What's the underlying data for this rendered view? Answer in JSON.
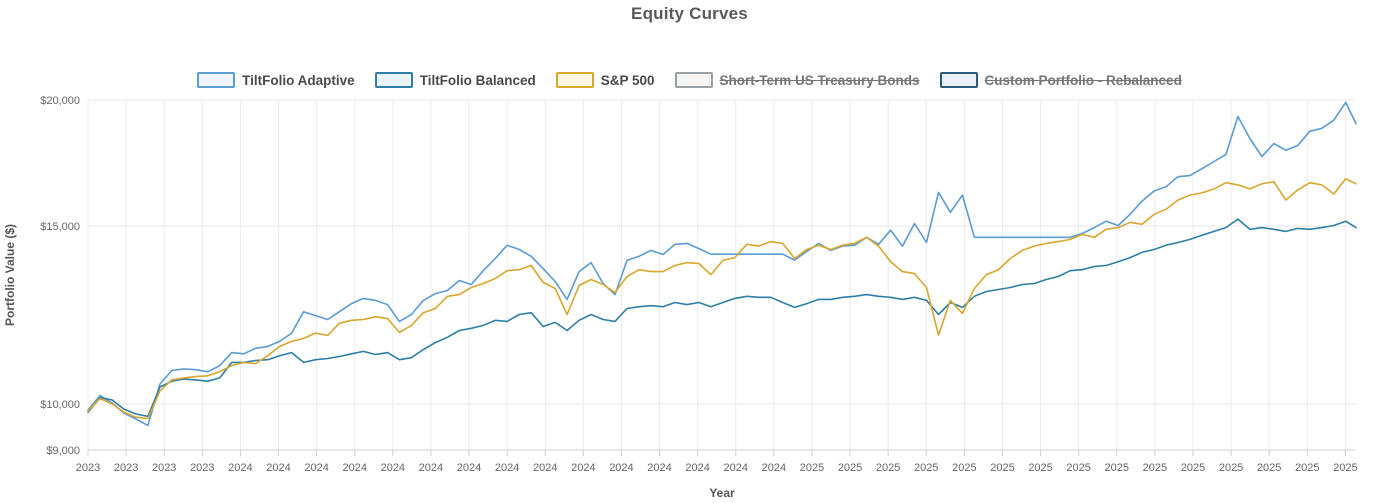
{
  "title": "Equity Curves",
  "legend": {
    "items": [
      {
        "label": "TiltFolio Adaptive",
        "color": "#5b9bd5",
        "fill": "#edf4fb",
        "active": true
      },
      {
        "label": "TiltFolio Balanced",
        "color": "#2f7ea6",
        "fill": "#e9f2f7",
        "active": true
      },
      {
        "label": "S&P 500",
        "color": "#d9a62e",
        "fill": "#fcf7e3",
        "active": true
      },
      {
        "label": "Short-Term US Treasury Bonds",
        "color": "#9aa0a5",
        "fill": "#f5f5f5",
        "active": false
      },
      {
        "label": "Custom Portfolio - Rebalanced",
        "color": "#2b5a7c",
        "fill": "#e9eff5",
        "active": false
      }
    ]
  },
  "chart_data": {
    "type": "line",
    "title": "Equity Curves",
    "xlabel": "Year",
    "ylabel": "Portfolio Value ($)",
    "y_scale": "log",
    "ylim": [
      9000,
      20000
    ],
    "xlim": [
      2023.767,
      2025.99
    ],
    "grid": true,
    "legend_position": "top",
    "y_ticks": [
      {
        "value": 9000,
        "label": "$9,000"
      },
      {
        "value": 10000,
        "label": "$10,000"
      },
      {
        "value": 15000,
        "label": "$15,000"
      },
      {
        "value": 20000,
        "label": "$20,000"
      }
    ],
    "x_ticks": {
      "step": 0.0668,
      "labels": [
        "2023",
        "2023",
        "2023",
        "2023",
        "2024",
        "2024",
        "2024",
        "2024",
        "2024",
        "2024",
        "2024",
        "2024",
        "2024",
        "2024",
        "2024",
        "2024",
        "2024",
        "2024",
        "2024",
        "2025",
        "2025",
        "2025",
        "2025",
        "2025",
        "2025",
        "2025",
        "2025",
        "2025",
        "2025",
        "2025",
        "2025",
        "2025",
        "2025",
        "2025"
      ]
    },
    "x": [
      2023.767,
      2023.788,
      2023.809,
      2023.83,
      2023.851,
      2023.872,
      2023.893,
      2023.914,
      2023.935,
      2023.956,
      2023.977,
      2023.998,
      2024.019,
      2024.04,
      2024.061,
      2024.082,
      2024.103,
      2024.124,
      2024.145,
      2024.166,
      2024.187,
      2024.208,
      2024.229,
      2024.25,
      2024.271,
      2024.292,
      2024.313,
      2024.334,
      2024.355,
      2024.376,
      2024.397,
      2024.418,
      2024.439,
      2024.46,
      2024.481,
      2024.502,
      2024.523,
      2024.544,
      2024.565,
      2024.586,
      2024.607,
      2024.628,
      2024.649,
      2024.67,
      2024.691,
      2024.712,
      2024.733,
      2024.754,
      2024.775,
      2024.796,
      2024.817,
      2024.838,
      2024.859,
      2024.88,
      2024.901,
      2024.922,
      2024.943,
      2024.964,
      2024.985,
      2025.006,
      2025.027,
      2025.048,
      2025.069,
      2025.09,
      2025.111,
      2025.132,
      2025.153,
      2025.174,
      2025.195,
      2025.216,
      2025.237,
      2025.258,
      2025.279,
      2025.3,
      2025.321,
      2025.342,
      2025.363,
      2025.384,
      2025.405,
      2025.426,
      2025.447,
      2025.468,
      2025.489,
      2025.51,
      2025.531,
      2025.552,
      2025.573,
      2025.594,
      2025.615,
      2025.636,
      2025.657,
      2025.678,
      2025.699,
      2025.72,
      2025.741,
      2025.762,
      2025.783,
      2025.804,
      2025.825,
      2025.846,
      2025.867,
      2025.888,
      2025.909,
      2025.93,
      2025.951,
      2025.972,
      2025.99
    ],
    "series": [
      {
        "name": "TiltFolio Adaptive",
        "color": "#5b9bd5",
        "hidden": false,
        "values": [
          9860,
          10190,
          10020,
          9790,
          9660,
          9520,
          10460,
          10790,
          10830,
          10810,
          10760,
          10910,
          11240,
          11210,
          11350,
          11400,
          11530,
          11750,
          12340,
          12230,
          12120,
          12340,
          12570,
          12720,
          12660,
          12540,
          12070,
          12260,
          12660,
          12860,
          12950,
          13250,
          13130,
          13550,
          13930,
          14360,
          14220,
          14000,
          13610,
          13220,
          12690,
          13520,
          13800,
          13160,
          12830,
          13870,
          14000,
          14190,
          14060,
          14390,
          14420,
          14250,
          14070,
          14070,
          14070,
          14070,
          14070,
          14070,
          14070,
          13880,
          14160,
          14420,
          14190,
          14330,
          14360,
          14620,
          14390,
          14860,
          14330,
          15090,
          14450,
          16200,
          15480,
          16100,
          14620,
          14620,
          14620,
          14620,
          14620,
          14620,
          14620,
          14620,
          14620,
          14750,
          14950,
          15170,
          15020,
          15410,
          15880,
          16250,
          16410,
          16790,
          16830,
          17100,
          17380,
          17660,
          19260,
          18320,
          17580,
          18110,
          17830,
          18030,
          18620,
          18750,
          19100,
          19890,
          18950
        ]
      },
      {
        "name": "TiltFolio Balanced",
        "color": "#2f7ea6",
        "hidden": false,
        "values": [
          9810,
          10140,
          10090,
          9880,
          9770,
          9720,
          10390,
          10530,
          10580,
          10560,
          10530,
          10610,
          10990,
          10990,
          11040,
          11060,
          11160,
          11240,
          10990,
          11060,
          11090,
          11140,
          11210,
          11270,
          11190,
          11240,
          11060,
          11110,
          11320,
          11500,
          11640,
          11820,
          11880,
          11960,
          12100,
          12070,
          12260,
          12310,
          11930,
          12040,
          11820,
          12100,
          12260,
          12120,
          12070,
          12430,
          12480,
          12510,
          12480,
          12600,
          12540,
          12600,
          12480,
          12600,
          12720,
          12780,
          12750,
          12750,
          12600,
          12460,
          12570,
          12690,
          12690,
          12750,
          12780,
          12830,
          12780,
          12750,
          12690,
          12750,
          12660,
          12260,
          12600,
          12460,
          12780,
          12920,
          12980,
          13040,
          13130,
          13160,
          13280,
          13370,
          13550,
          13580,
          13680,
          13710,
          13830,
          13960,
          14130,
          14220,
          14360,
          14450,
          14550,
          14690,
          14820,
          14950,
          15240,
          14890,
          14950,
          14890,
          14820,
          14920,
          14890,
          14950,
          15020,
          15170,
          14950
        ]
      },
      {
        "name": "S&P 500",
        "color": "#d9a62e",
        "hidden": false,
        "values": [
          9840,
          10120,
          10000,
          9810,
          9700,
          9670,
          10300,
          10560,
          10610,
          10640,
          10660,
          10760,
          10910,
          10990,
          10960,
          11160,
          11400,
          11530,
          11610,
          11750,
          11690,
          12020,
          12100,
          12120,
          12200,
          12150,
          11770,
          11960,
          12310,
          12430,
          12780,
          12830,
          13040,
          13160,
          13310,
          13550,
          13580,
          13710,
          13190,
          13010,
          12260,
          13100,
          13280,
          13130,
          12890,
          13370,
          13580,
          13520,
          13520,
          13710,
          13800,
          13770,
          13430,
          13870,
          13960,
          14390,
          14330,
          14480,
          14420,
          13930,
          14220,
          14360,
          14220,
          14360,
          14420,
          14620,
          14330,
          13830,
          13520,
          13460,
          13040,
          11700,
          12660,
          12290,
          13010,
          13430,
          13580,
          13930,
          14190,
          14330,
          14420,
          14480,
          14550,
          14720,
          14620,
          14890,
          14950,
          15130,
          15060,
          15410,
          15590,
          15920,
          16100,
          16180,
          16330,
          16560,
          16480,
          16330,
          16520,
          16600,
          15920,
          16290,
          16560,
          16480,
          16140,
          16710,
          16520
        ]
      },
      {
        "name": "Short-Term US Treasury Bonds",
        "color": "#9aa0a5",
        "hidden": true,
        "values": []
      },
      {
        "name": "Custom Portfolio - Rebalanced",
        "color": "#2b5a7c",
        "hidden": true,
        "values": []
      }
    ]
  }
}
